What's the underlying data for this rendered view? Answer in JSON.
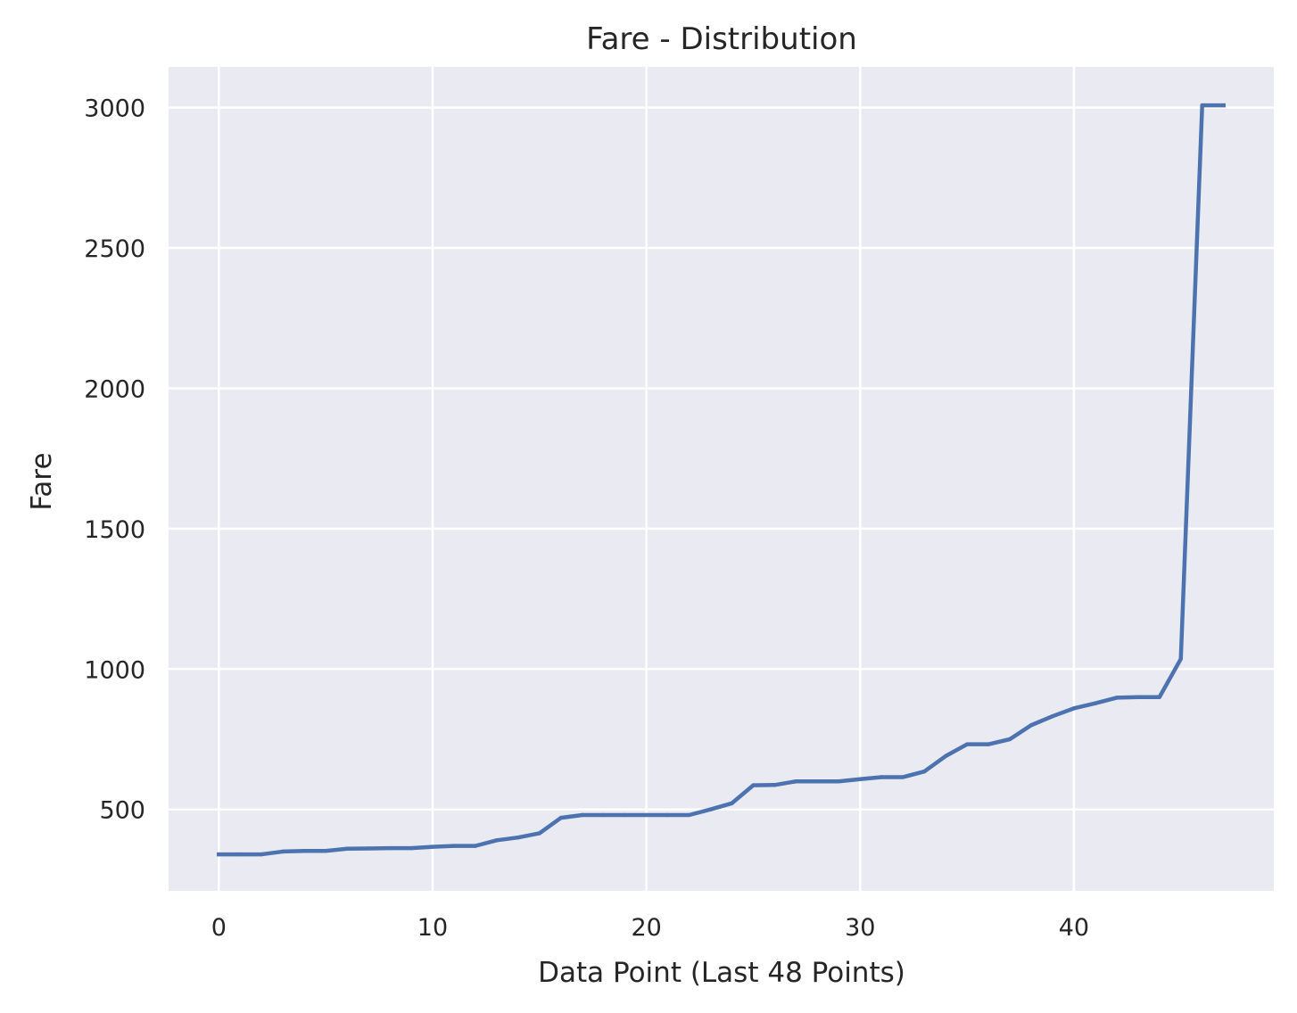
{
  "chart_data": {
    "type": "line",
    "title": "Fare - Distribution",
    "xlabel": "Data Point (Last 48 Points)",
    "ylabel": "Fare",
    "xlim": [
      -2.35,
      49.35
    ],
    "ylim": [
      210,
      3145
    ],
    "xticks": [
      0,
      10,
      20,
      30,
      40
    ],
    "yticks": [
      500,
      1000,
      1500,
      2000,
      2500,
      3000
    ],
    "grid": true,
    "background_color": "#eaeaf2",
    "series": [
      {
        "color": "#4c72b0",
        "x": [
          0,
          1,
          2,
          3,
          4,
          5,
          6,
          7,
          8,
          9,
          10,
          11,
          12,
          13,
          14,
          15,
          16,
          17,
          18,
          19,
          20,
          21,
          22,
          23,
          24,
          25,
          26,
          27,
          28,
          29,
          30,
          31,
          32,
          33,
          34,
          35,
          36,
          37,
          38,
          39,
          40,
          41,
          42,
          43,
          44,
          45,
          46,
          47
        ],
        "y": [
          340,
          340,
          340,
          350,
          352,
          352,
          360,
          361,
          362,
          362,
          367,
          370,
          370,
          390,
          400,
          415,
          470,
          480,
          480,
          480,
          480,
          480,
          480,
          500,
          522,
          586,
          587,
          600,
          600,
          600,
          608,
          615,
          615,
          635,
          690,
          732,
          732,
          750,
          800,
          832,
          860,
          878,
          898,
          900,
          900,
          1036,
          3008,
          3008
        ]
      }
    ]
  }
}
